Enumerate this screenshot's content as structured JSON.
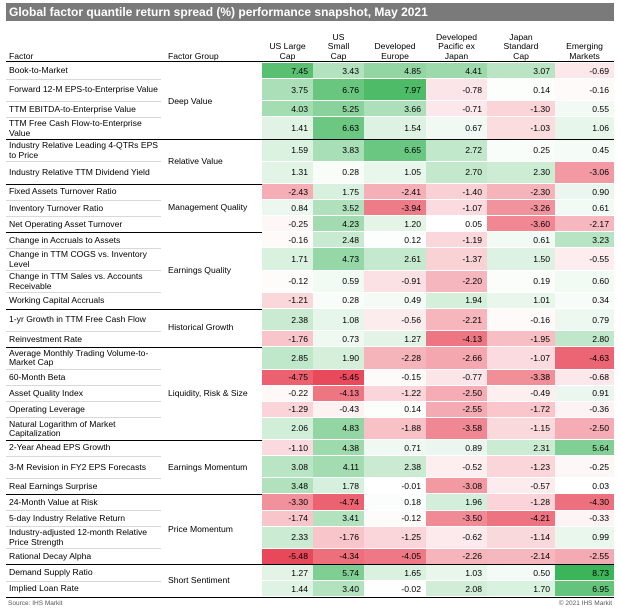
{
  "title": "Global factor quantile return spread (%) performance snapshot, May 2021",
  "source": "Source: IHS Markit",
  "copyright": "© 2021 IHS Markit",
  "headers": {
    "factor": "Factor",
    "group": "Factor Group",
    "columns": [
      [
        "US Large",
        "Cap"
      ],
      [
        "US",
        "Small",
        "Cap"
      ],
      [
        "Developed",
        "Europe"
      ],
      [
        "Developed",
        "Pacific ex",
        "Japan"
      ],
      [
        "Japan",
        "Standard",
        "Cap"
      ],
      [
        "Emerging",
        "Markets"
      ]
    ]
  },
  "colors": {
    "positive": "#3cb55a",
    "negative": "#e8495a",
    "neutral": "#ffffff",
    "title_bg": "#7a7a7a"
  },
  "chart_data": {
    "type": "table",
    "title": "Global factor quantile return spread (%) performance snapshot, May 2021",
    "columns": [
      "US Large Cap",
      "US Small Cap",
      "Developed Europe",
      "Developed Pacific ex Japan",
      "Japan Standard Cap",
      "Emerging Markets"
    ],
    "groups": [
      {
        "name": "Deep Value",
        "rows": [
          {
            "factor": "Book-to-Market",
            "values": [
              7.45,
              3.43,
              4.85,
              4.41,
              3.07,
              -0.69
            ]
          },
          {
            "factor": "Forward 12-M EPS-to-Enterprise Value",
            "values": [
              3.75,
              6.76,
              7.97,
              -0.78,
              0.14,
              -0.16
            ]
          },
          {
            "factor": "TTM EBITDA-to-Enterprise Value",
            "values": [
              4.03,
              5.25,
              3.66,
              -0.71,
              -1.3,
              0.55
            ]
          },
          {
            "factor": "TTM Free Cash Flow-to-Enterprise Value",
            "values": [
              1.41,
              6.63,
              1.54,
              0.67,
              -1.03,
              1.06
            ]
          }
        ]
      },
      {
        "name": "Relative Value",
        "rows": [
          {
            "factor": "Industry Relative Leading 4-QTRs EPS to Price",
            "values": [
              1.59,
              3.83,
              6.65,
              2.72,
              0.25,
              0.45
            ]
          },
          {
            "factor": "Industry Relative TTM Dividend Yield",
            "values": [
              1.31,
              0.28,
              1.05,
              2.7,
              2.3,
              -3.06
            ]
          }
        ]
      },
      {
        "name": "Management Quality",
        "rows": [
          {
            "factor": "Fixed Assets Turnover Ratio",
            "values": [
              -2.43,
              1.75,
              -2.41,
              -1.4,
              -2.3,
              0.9
            ]
          },
          {
            "factor": "Inventory Turnover Ratio",
            "values": [
              0.84,
              3.52,
              -3.94,
              -1.07,
              -3.26,
              0.61
            ]
          },
          {
            "factor": "Net Operating Asset Turnover",
            "values": [
              -0.25,
              4.23,
              1.2,
              0.05,
              -3.6,
              -2.17
            ]
          }
        ]
      },
      {
        "name": "Earnings Quality",
        "rows": [
          {
            "factor": "Change in Accruals to Assets",
            "values": [
              -0.16,
              2.48,
              0.12,
              -1.19,
              0.61,
              3.23
            ]
          },
          {
            "factor": "Change in TTM COGS vs. Inventory Level",
            "values": [
              1.71,
              4.73,
              2.61,
              -1.37,
              1.5,
              -0.55
            ]
          },
          {
            "factor": "Change in TTM Sales vs. Accounts Receivable",
            "values": [
              -0.12,
              0.59,
              -0.91,
              -2.2,
              0.19,
              0.6
            ]
          },
          {
            "factor": "Working Capital Accruals",
            "values": [
              -1.21,
              0.28,
              0.49,
              1.94,
              1.01,
              0.34
            ]
          }
        ]
      },
      {
        "name": "Historical Growth",
        "rows": [
          {
            "factor": "1-yr Growth in TTM Free Cash Flow",
            "values": [
              2.38,
              1.08,
              -0.56,
              -2.21,
              -0.16,
              0.79
            ]
          },
          {
            "factor": "Reinvestment Rate",
            "values": [
              -1.76,
              0.73,
              1.27,
              -4.13,
              -1.95,
              2.8
            ]
          }
        ]
      },
      {
        "name": "Liquidity, Risk & Size",
        "rows": [
          {
            "factor": "Average Monthly Trading Volume-to-Market Cap",
            "values": [
              2.85,
              1.9,
              -2.28,
              -2.66,
              -1.07,
              -4.63
            ]
          },
          {
            "factor": "60-Month Beta",
            "values": [
              -4.75,
              -5.45,
              -0.15,
              -0.77,
              -3.38,
              -0.68
            ]
          },
          {
            "factor": "Asset Quality Index",
            "values": [
              -0.22,
              -4.13,
              -1.22,
              -2.5,
              -0.49,
              0.91
            ]
          },
          {
            "factor": "Operating Leverage",
            "values": [
              -1.29,
              -0.43,
              0.14,
              -2.55,
              -1.72,
              -0.36
            ]
          },
          {
            "factor": "Natural Logarithm of Market Capitalization",
            "values": [
              2.06,
              4.83,
              -1.88,
              -3.58,
              -1.15,
              -2.5
            ]
          }
        ]
      },
      {
        "name": "Earnings Momentum",
        "rows": [
          {
            "factor": "2-Year Ahead EPS Growth",
            "values": [
              -1.1,
              4.38,
              0.71,
              0.89,
              2.31,
              5.64
            ]
          },
          {
            "factor": "3-M Revision in FY2 EPS Forecasts",
            "values": [
              3.08,
              4.11,
              2.38,
              -0.52,
              -1.23,
              -0.25
            ]
          },
          {
            "factor": "Real Earnings Surprise",
            "values": [
              3.48,
              1.78,
              -0.01,
              -3.08,
              -0.57,
              0.03
            ]
          }
        ]
      },
      {
        "name": "Price Momentum",
        "rows": [
          {
            "factor": "24-Month Value at Risk",
            "values": [
              -3.3,
              -4.74,
              0.18,
              1.96,
              -1.28,
              -4.3
            ]
          },
          {
            "factor": "5-day Industry Relative Return",
            "values": [
              -1.74,
              3.41,
              -0.12,
              -3.5,
              -4.21,
              -0.33
            ]
          },
          {
            "factor": "Industry-adjusted 12-month Relative Price Strength",
            "values": [
              2.33,
              -1.76,
              -1.25,
              -0.62,
              -1.14,
              0.99
            ]
          },
          {
            "factor": "Rational Decay Alpha",
            "values": [
              -5.48,
              -4.34,
              -4.05,
              -2.26,
              -2.14,
              -2.55
            ]
          }
        ]
      },
      {
        "name": "Short Sentiment",
        "rows": [
          {
            "factor": "Demand Supply Ratio",
            "values": [
              1.27,
              5.74,
              1.65,
              1.03,
              0.5,
              8.73
            ]
          },
          {
            "factor": "Implied Loan Rate",
            "values": [
              1.44,
              3.4,
              -0.02,
              2.08,
              1.7,
              6.95
            ]
          }
        ]
      }
    ]
  }
}
